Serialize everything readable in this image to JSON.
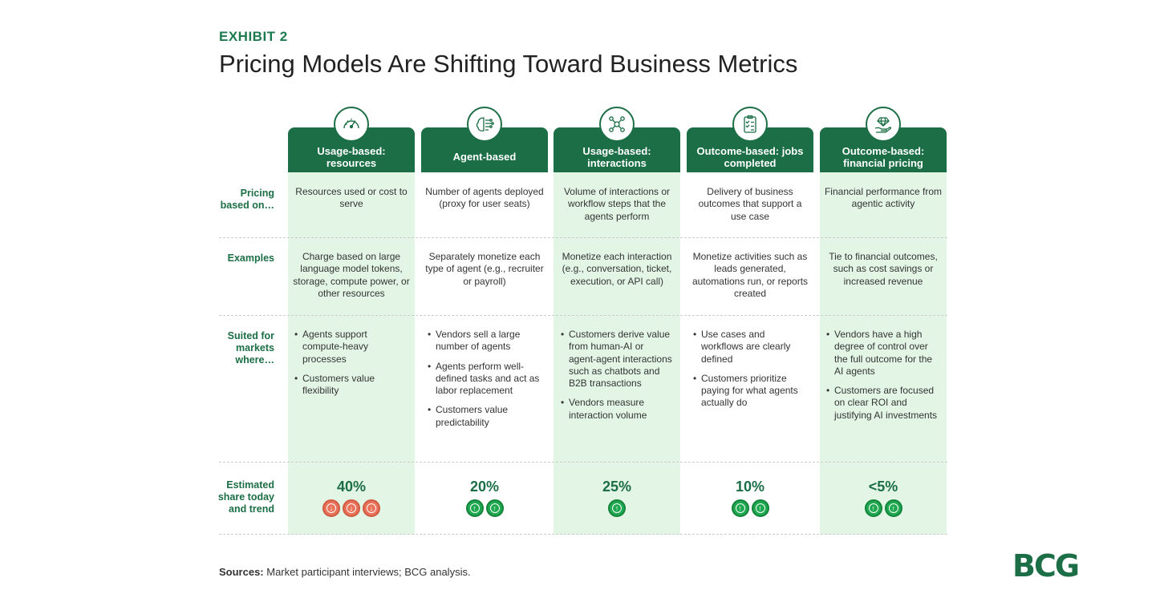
{
  "exhibit": "EXHIBIT 2",
  "title": "Pricing Models Are Shifting Toward Business Metrics",
  "row_labels": {
    "pricing": "Pricing based on…",
    "examples": "Examples",
    "suited": "Suited for markets where…",
    "share": "Estimated share today and trend"
  },
  "columns": [
    {
      "header": "Usage-based: resources",
      "icon": "speedometer-icon",
      "pricing": "Resources used or cost to serve",
      "examples": "Charge based on large language model tokens, storage, compute power, or other resources",
      "suited": [
        "Agents support compute-heavy processes",
        "Customers value flexibility"
      ],
      "share": "40%",
      "trend": "down",
      "trend_count": 3
    },
    {
      "header": "Agent-based",
      "icon": "brain-circuit-icon",
      "pricing": "Number of agents deployed (proxy for user seats)",
      "examples": "Separately monetize each type of agent (e.g., recruiter or payroll)",
      "suited": [
        "Vendors sell a large number of agents",
        "Agents perform well-defined tasks and act as labor replacement",
        "Customers value predictability"
      ],
      "share": "20%",
      "trend": "up",
      "trend_count": 2
    },
    {
      "header": "Usage-based: interactions",
      "icon": "network-icon",
      "pricing": "Volume of interactions or workflow steps that the agents perform",
      "examples": "Monetize each interaction (e.g., conversation, ticket, execution, or API call)",
      "suited": [
        "Customers derive value from human-AI or agent-agent interactions such as chatbots and B2B transactions",
        "Vendors measure interaction volume"
      ],
      "share": "25%",
      "trend": "up",
      "trend_count": 1
    },
    {
      "header": "Outcome-based: jobs completed",
      "icon": "checklist-icon",
      "pricing": "Delivery of business outcomes that support a use case",
      "examples": "Monetize activities such as leads generated, automations run, or reports created",
      "suited": [
        "Use cases and workflows are clearly defined",
        "Customers prioritize paying for what agents actually do"
      ],
      "share": "10%",
      "trend": "up",
      "trend_count": 2
    },
    {
      "header": "Outcome-based: financial pricing",
      "icon": "diamond-hand-icon",
      "pricing": "Financial performance from agentic activity",
      "examples": "Tie to financial outcomes, such as cost savings or increased revenue",
      "suited": [
        "Vendors have a high degree of control over the full outcome for the AI agents",
        "Customers are focused on clear ROI and justifying AI investments"
      ],
      "share": "<5%",
      "trend": "up",
      "trend_count": 2
    }
  ],
  "sources_label": "Sources:",
  "sources_text": " Market participant interviews; BCG analysis.",
  "logo": "BCG",
  "colors": {
    "primary": "#1b6e45",
    "light": "#e3f6e5",
    "up": "#1fa84f",
    "down": "#e9735a"
  }
}
